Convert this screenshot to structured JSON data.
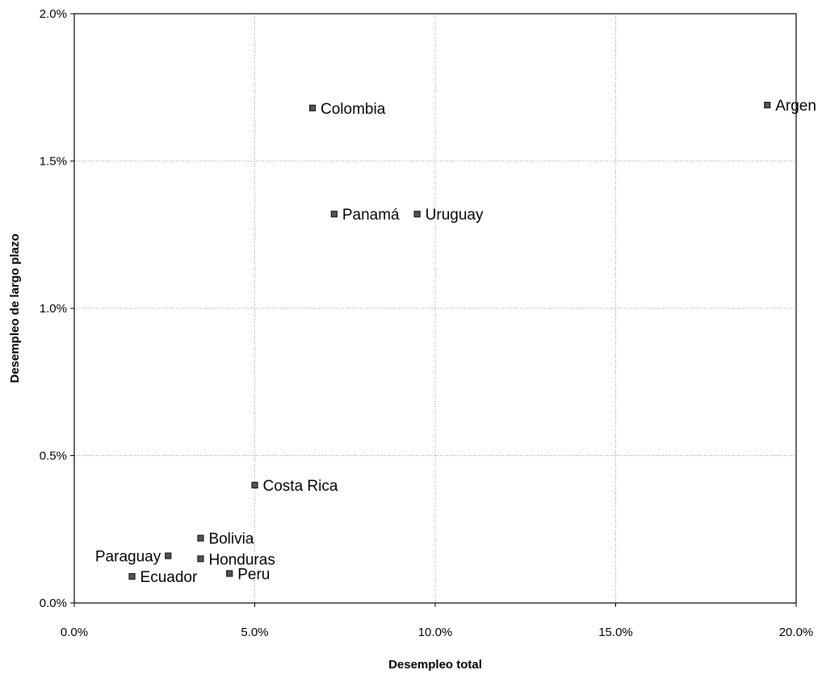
{
  "chart_data": {
    "type": "scatter",
    "xlabel": "Desempleo total",
    "ylabel": "Desempleo de largo plazo",
    "xlim": [
      0,
      20
    ],
    "ylim": [
      0,
      2
    ],
    "x_unit": "%",
    "y_unit": "%",
    "x_ticks": [
      {
        "value": 0,
        "label": "0.0%"
      },
      {
        "value": 5,
        "label": "5.0%"
      },
      {
        "value": 10,
        "label": "10.0%"
      },
      {
        "value": 15,
        "label": "15.0%"
      },
      {
        "value": 20,
        "label": "20.0%"
      }
    ],
    "y_ticks": [
      {
        "value": 0,
        "label": "0.0%"
      },
      {
        "value": 0.5,
        "label": "0.5%"
      },
      {
        "value": 1,
        "label": "1.0%"
      },
      {
        "value": 1.5,
        "label": "1.5%"
      },
      {
        "value": 2,
        "label": "2.0%"
      }
    ],
    "grid": "dotted",
    "marker_color": "#555555",
    "points": [
      {
        "label": "Colombia",
        "x": 6.6,
        "y": 1.68,
        "label_side": "right"
      },
      {
        "label": "Argentina",
        "x": 19.2,
        "y": 1.69,
        "label_side": "right",
        "visible_label": "Argen"
      },
      {
        "label": "Panamá",
        "x": 7.2,
        "y": 1.32,
        "label_side": "right"
      },
      {
        "label": "Uruguay",
        "x": 9.5,
        "y": 1.32,
        "label_side": "right"
      },
      {
        "label": "Costa Rica",
        "x": 5.0,
        "y": 0.4,
        "label_side": "right"
      },
      {
        "label": "Bolivia",
        "x": 3.5,
        "y": 0.22,
        "label_side": "right"
      },
      {
        "label": "Paraguay",
        "x": 2.6,
        "y": 0.16,
        "label_side": "left"
      },
      {
        "label": "Honduras",
        "x": 3.5,
        "y": 0.15,
        "label_side": "right"
      },
      {
        "label": "Ecuador",
        "x": 1.6,
        "y": 0.09,
        "label_side": "right"
      },
      {
        "label": "Peru",
        "x": 4.3,
        "y": 0.1,
        "label_side": "right"
      }
    ]
  }
}
